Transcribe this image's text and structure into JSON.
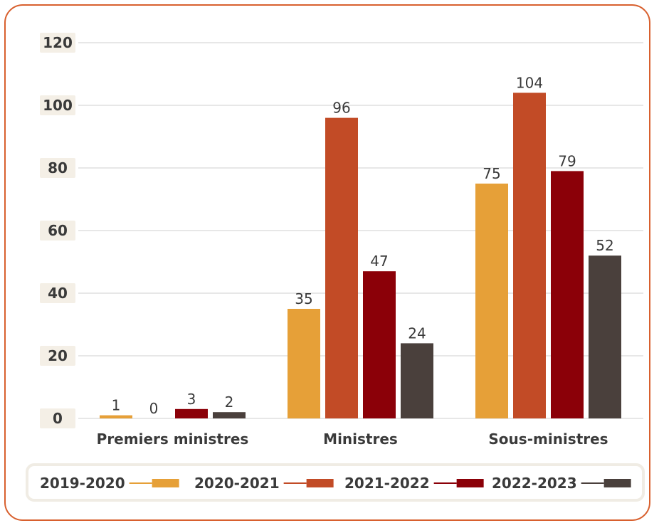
{
  "chart_data": {
    "type": "bar",
    "categories": [
      "Premiers ministres",
      "Ministres",
      "Sous-ministres"
    ],
    "series": [
      {
        "name": "2019-2020",
        "values": [
          1,
          35,
          75
        ],
        "color": "#e6a038"
      },
      {
        "name": "2020-2021",
        "values": [
          0,
          96,
          104
        ],
        "color": "#c24b26"
      },
      {
        "name": "2021-2022",
        "values": [
          3,
          47,
          79
        ],
        "color": "#8b0008"
      },
      {
        "name": "2022-2023",
        "values": [
          2,
          24,
          52
        ],
        "color": "#4a403c"
      }
    ],
    "yticks": [
      0,
      20,
      40,
      60,
      80,
      100,
      120
    ],
    "ylim": [
      0,
      120
    ],
    "grid": true,
    "legend_position": "bottom",
    "title": "",
    "xlabel": "",
    "ylabel": ""
  }
}
